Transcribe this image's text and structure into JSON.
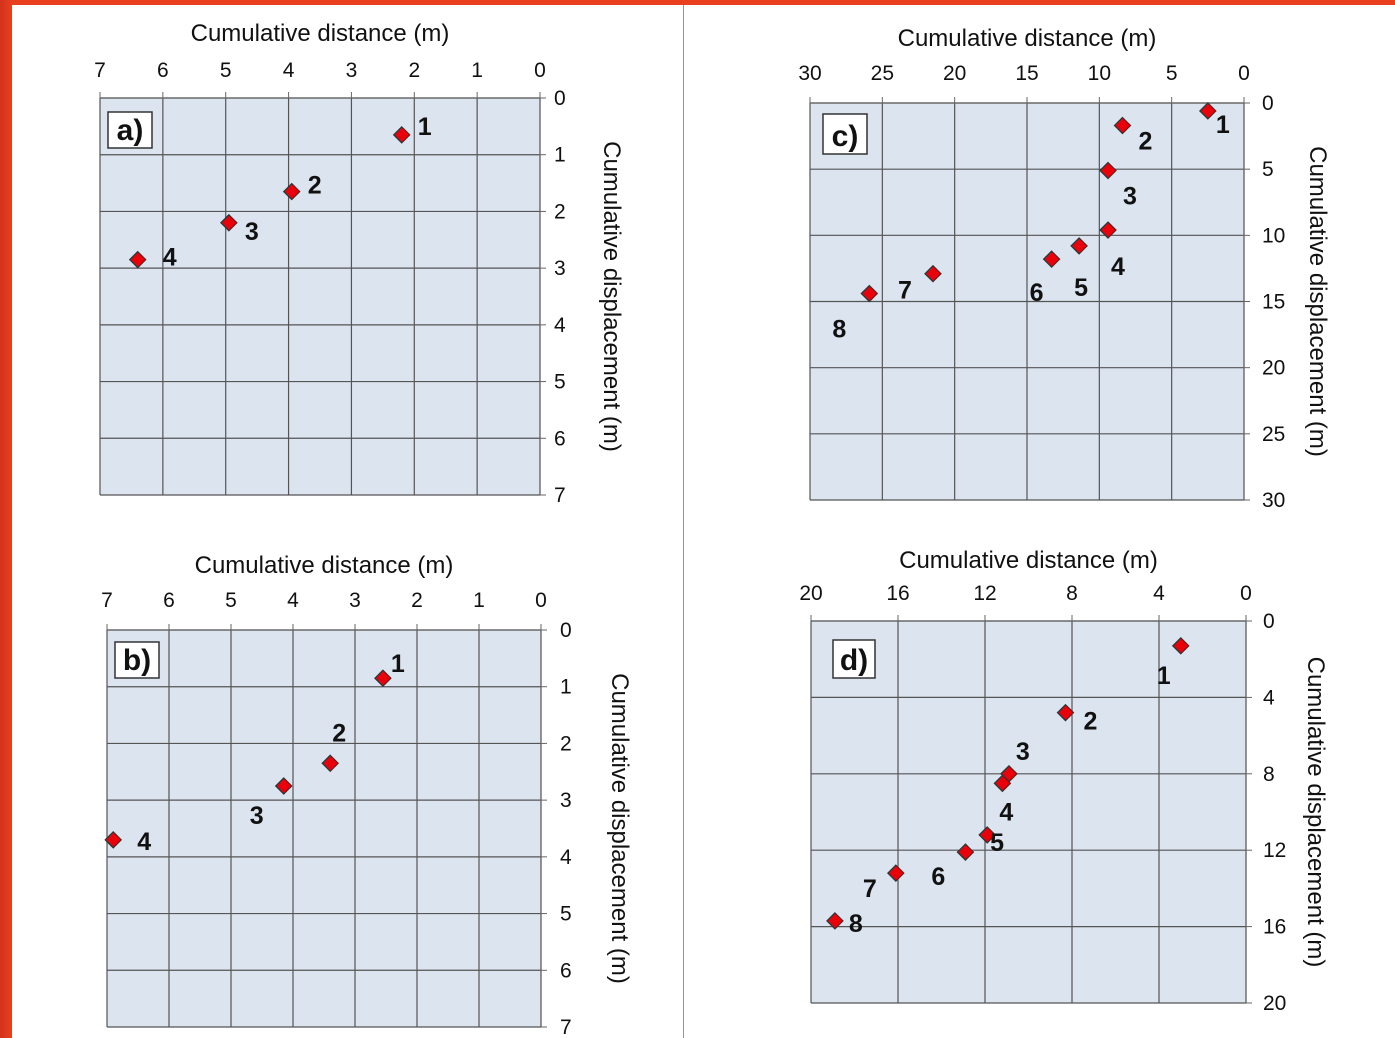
{
  "chart_data": [
    {
      "type": "scatter",
      "panel_label": "a)",
      "xlabel": "Cumulative distance (m)",
      "ylabel": "Cumulative displacement (m)",
      "xlim": [
        7,
        0
      ],
      "ylim": [
        0,
        7
      ],
      "x_ticks": [
        7,
        6,
        5,
        4,
        3,
        2,
        1,
        0
      ],
      "y_ticks": [
        0,
        1,
        2,
        3,
        4,
        5,
        6,
        7
      ],
      "x_reversed": true,
      "y_inverted": true,
      "grid": true,
      "points": [
        {
          "label": "1",
          "x": 2.2,
          "y": 0.65
        },
        {
          "label": "2",
          "x": 3.95,
          "y": 1.65
        },
        {
          "label": "3",
          "x": 4.95,
          "y": 2.2
        },
        {
          "label": "4",
          "x": 6.4,
          "y": 2.85
        }
      ]
    },
    {
      "type": "scatter",
      "panel_label": "b)",
      "xlabel": "Cumulative distance (m)",
      "ylabel": "Cumulative displacement (m)",
      "xlim": [
        7,
        0
      ],
      "ylim": [
        0,
        7
      ],
      "x_ticks": [
        7,
        6,
        5,
        4,
        3,
        2,
        1,
        0
      ],
      "y_ticks": [
        0,
        1,
        2,
        3,
        4,
        5,
        6,
        7
      ],
      "x_reversed": true,
      "y_inverted": true,
      "grid": true,
      "points": [
        {
          "label": "1",
          "x": 2.55,
          "y": 0.85
        },
        {
          "label": "2",
          "x": 3.4,
          "y": 2.35
        },
        {
          "label": "3",
          "x": 4.15,
          "y": 2.75
        },
        {
          "label": "4",
          "x": 6.9,
          "y": 3.7
        }
      ]
    },
    {
      "type": "scatter",
      "panel_label": "c)",
      "xlabel": "Cumulative distance (m)",
      "ylabel": "Cumulative displacement (m)",
      "xlim": [
        30,
        0
      ],
      "ylim": [
        0,
        30
      ],
      "x_ticks": [
        30,
        25,
        20,
        15,
        10,
        5,
        0
      ],
      "y_ticks": [
        0,
        5,
        10,
        15,
        20,
        25,
        30
      ],
      "x_reversed": true,
      "y_inverted": true,
      "grid": true,
      "points": [
        {
          "label": "1",
          "x": 2.5,
          "y": 0.6
        },
        {
          "label": "2",
          "x": 8.4,
          "y": 1.7
        },
        {
          "label": "3",
          "x": 9.4,
          "y": 5.1
        },
        {
          "label": "4",
          "x": 9.4,
          "y": 9.6
        },
        {
          "label": "5",
          "x": 11.4,
          "y": 10.8
        },
        {
          "label": "6",
          "x": 13.3,
          "y": 11.8
        },
        {
          "label": "7",
          "x": 21.5,
          "y": 12.9
        },
        {
          "label": "8",
          "x": 25.9,
          "y": 14.4
        }
      ]
    },
    {
      "type": "scatter",
      "panel_label": "d)",
      "xlabel": "Cumulative distance (m)",
      "ylabel": "Cumulative displacement (m)",
      "xlim": [
        20,
        0
      ],
      "ylim": [
        0,
        20
      ],
      "x_ticks": [
        20,
        16,
        12,
        8,
        4,
        0
      ],
      "y_ticks": [
        0,
        4,
        8,
        12,
        16,
        20
      ],
      "x_reversed": true,
      "y_inverted": true,
      "grid": true,
      "points": [
        {
          "label": "1",
          "x": 3,
          "y": 1.3
        },
        {
          "label": "2",
          "x": 8.3,
          "y": 4.8
        },
        {
          "label": "3",
          "x": 10.9,
          "y": 8.0
        },
        {
          "label": "4",
          "x": 11.2,
          "y": 8.5
        },
        {
          "label": "5",
          "x": 11.9,
          "y": 11.2
        },
        {
          "label": "6",
          "x": 12.9,
          "y": 12.1
        },
        {
          "label": "7",
          "x": 16.1,
          "y": 13.2
        },
        {
          "label": "8",
          "x": 18.9,
          "y": 15.7
        }
      ]
    }
  ],
  "colors": {
    "frame": "#e8401e",
    "plot_background": "#dbe4ef",
    "grid": "#555555",
    "marker_fill": "#e8000b"
  }
}
